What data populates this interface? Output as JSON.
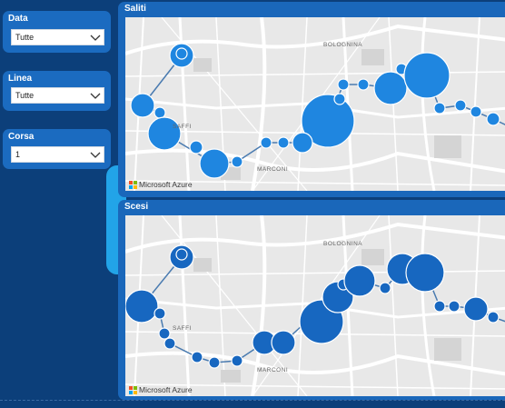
{
  "filters": [
    {
      "label": "Data",
      "value": "Tutte"
    },
    {
      "label": "Linea",
      "value": "Tutte"
    },
    {
      "label": "Corsa",
      "value": "1"
    }
  ],
  "panels": {
    "saliti": {
      "title": "Saliti"
    },
    "scesi": {
      "title": "Scesi"
    }
  },
  "map": {
    "labels": {
      "district_north": "BOLOGNINA",
      "district_west": "SAFFI",
      "district_south": "MARCONI"
    },
    "attribution": "Microsoft Azure"
  },
  "colors": {
    "background": "#0c3f7a",
    "card": "#1b6bc0",
    "accent": "#22a4e8",
    "bubble_saliti": "#1f86e0",
    "bubble_scesi": "#1767c0"
  },
  "icons": {
    "dropdown": "chevron-down-icon",
    "logo": "microsoft-logo-icon"
  }
}
